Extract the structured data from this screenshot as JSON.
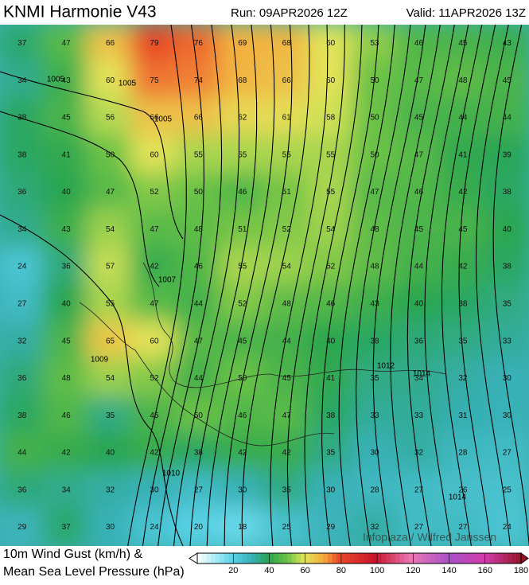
{
  "header": {
    "title": "KNMI Harmonie V43",
    "run": "Run: 09APR2026 12Z",
    "valid": "Valid: 11APR2026 13Z"
  },
  "map": {
    "gust_grid": [
      [
        37,
        47,
        66,
        79,
        76,
        69,
        68,
        60,
        53,
        46,
        45,
        43
      ],
      [
        34,
        43,
        60,
        75,
        74,
        68,
        66,
        60,
        50,
        47,
        48,
        45
      ],
      [
        38,
        45,
        56,
        66,
        66,
        62,
        61,
        58,
        50,
        45,
        44,
        44
      ],
      [
        38,
        41,
        50,
        60,
        55,
        55,
        55,
        55,
        50,
        47,
        41,
        39
      ],
      [
        36,
        40,
        47,
        52,
        50,
        46,
        51,
        55,
        47,
        46,
        42,
        38
      ],
      [
        34,
        43,
        54,
        47,
        48,
        51,
        52,
        54,
        48,
        45,
        45,
        40
      ],
      [
        24,
        36,
        57,
        42,
        46,
        55,
        54,
        52,
        48,
        44,
        42,
        38
      ],
      [
        27,
        40,
        55,
        47,
        44,
        52,
        48,
        46,
        43,
        40,
        38,
        35
      ],
      [
        32,
        45,
        65,
        60,
        47,
        45,
        44,
        40,
        38,
        36,
        35,
        33
      ],
      [
        36,
        48,
        54,
        52,
        44,
        50,
        45,
        41,
        35,
        34,
        32,
        30
      ],
      [
        38,
        46,
        35,
        45,
        50,
        46,
        47,
        38,
        33,
        33,
        31,
        30
      ],
      [
        44,
        42,
        40,
        42,
        38,
        42,
        42,
        35,
        30,
        32,
        28,
        27
      ],
      [
        36,
        34,
        32,
        30,
        27,
        30,
        35,
        30,
        28,
        27,
        26,
        25
      ],
      [
        29,
        37,
        30,
        24,
        20,
        18,
        25,
        29,
        32,
        27,
        27,
        24
      ]
    ],
    "isobar_labels": [
      "1005",
      "1005",
      "1005",
      "1007",
      "1009",
      "1010",
      "1012",
      "1014",
      "1014"
    ],
    "credit": "Infoplaza / Wilfred Janssen"
  },
  "footer": {
    "line1": "10m Wind Gust (km/h) &",
    "line2": "Mean Sea Level Pressure (hPa)"
  },
  "colorbar": {
    "range": [
      0,
      180
    ],
    "ticks": [
      20,
      40,
      60,
      80,
      100,
      120,
      140,
      160,
      180
    ]
  }
}
